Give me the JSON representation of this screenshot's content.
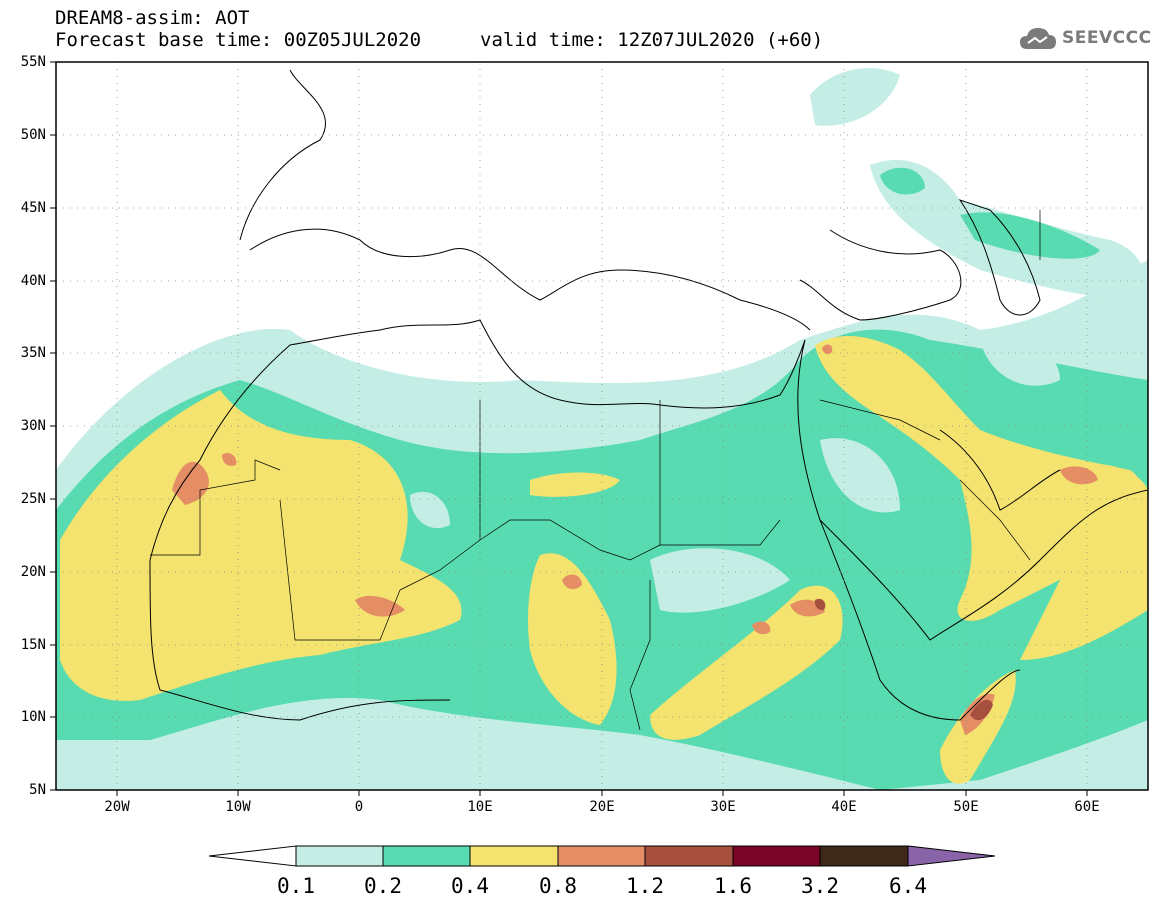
{
  "header": {
    "title": "DREAM8-assim: AOT",
    "base_time": "Forecast base time: 00Z05JUL2020",
    "valid_time": "valid time: 12Z07JUL2020 (+60)"
  },
  "logo": {
    "text": "SEEVCCC",
    "icon": "cloud-icon"
  },
  "map": {
    "lat_labels": [
      "55N",
      "50N",
      "45N",
      "40N",
      "35N",
      "30N",
      "25N",
      "20N",
      "15N",
      "10N",
      "5N"
    ],
    "lon_labels": [
      "20W",
      "10W",
      "0",
      "10E",
      "20E",
      "30E",
      "40E",
      "50E",
      "60E"
    ],
    "lon_range": [
      -25,
      65
    ],
    "lat_range": [
      5,
      55
    ]
  },
  "colorbar": {
    "levels": [
      "0.1",
      "0.2",
      "0.4",
      "0.8",
      "1.2",
      "1.6",
      "3.2",
      "6.4"
    ],
    "colors": [
      "#ffffff",
      "#c4eee5",
      "#58dbb0",
      "#f4e36e",
      "#e58e66",
      "#a85040",
      "#7a0528",
      "#3e2818",
      "#8a64a8"
    ]
  }
}
